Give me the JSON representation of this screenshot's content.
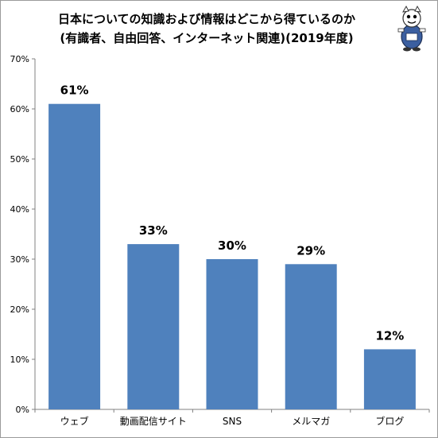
{
  "chart_data": {
    "type": "bar",
    "title_line1": "日本についての知識および情報はどこから得ているのか",
    "title_line2": "(有識者、自由回答、インターネット関連)(2019年度)",
    "categories": [
      "ウェブ",
      "動画配信サイト",
      "SNS",
      "メルマガ",
      "ブログ"
    ],
    "values": [
      61,
      33,
      30,
      29,
      12
    ],
    "data_labels": [
      "61%",
      "33%",
      "30%",
      "29%",
      "12%"
    ],
    "ylim": [
      0,
      70
    ],
    "yticks": [
      "0%",
      "10%",
      "20%",
      "30%",
      "40%",
      "50%",
      "60%",
      "70%"
    ],
    "xlabel": "",
    "ylabel": "",
    "grid": false,
    "legend": "none",
    "bar_color": "#4f81bd"
  },
  "mascot": {
    "icon": "mascot-logo-icon"
  }
}
